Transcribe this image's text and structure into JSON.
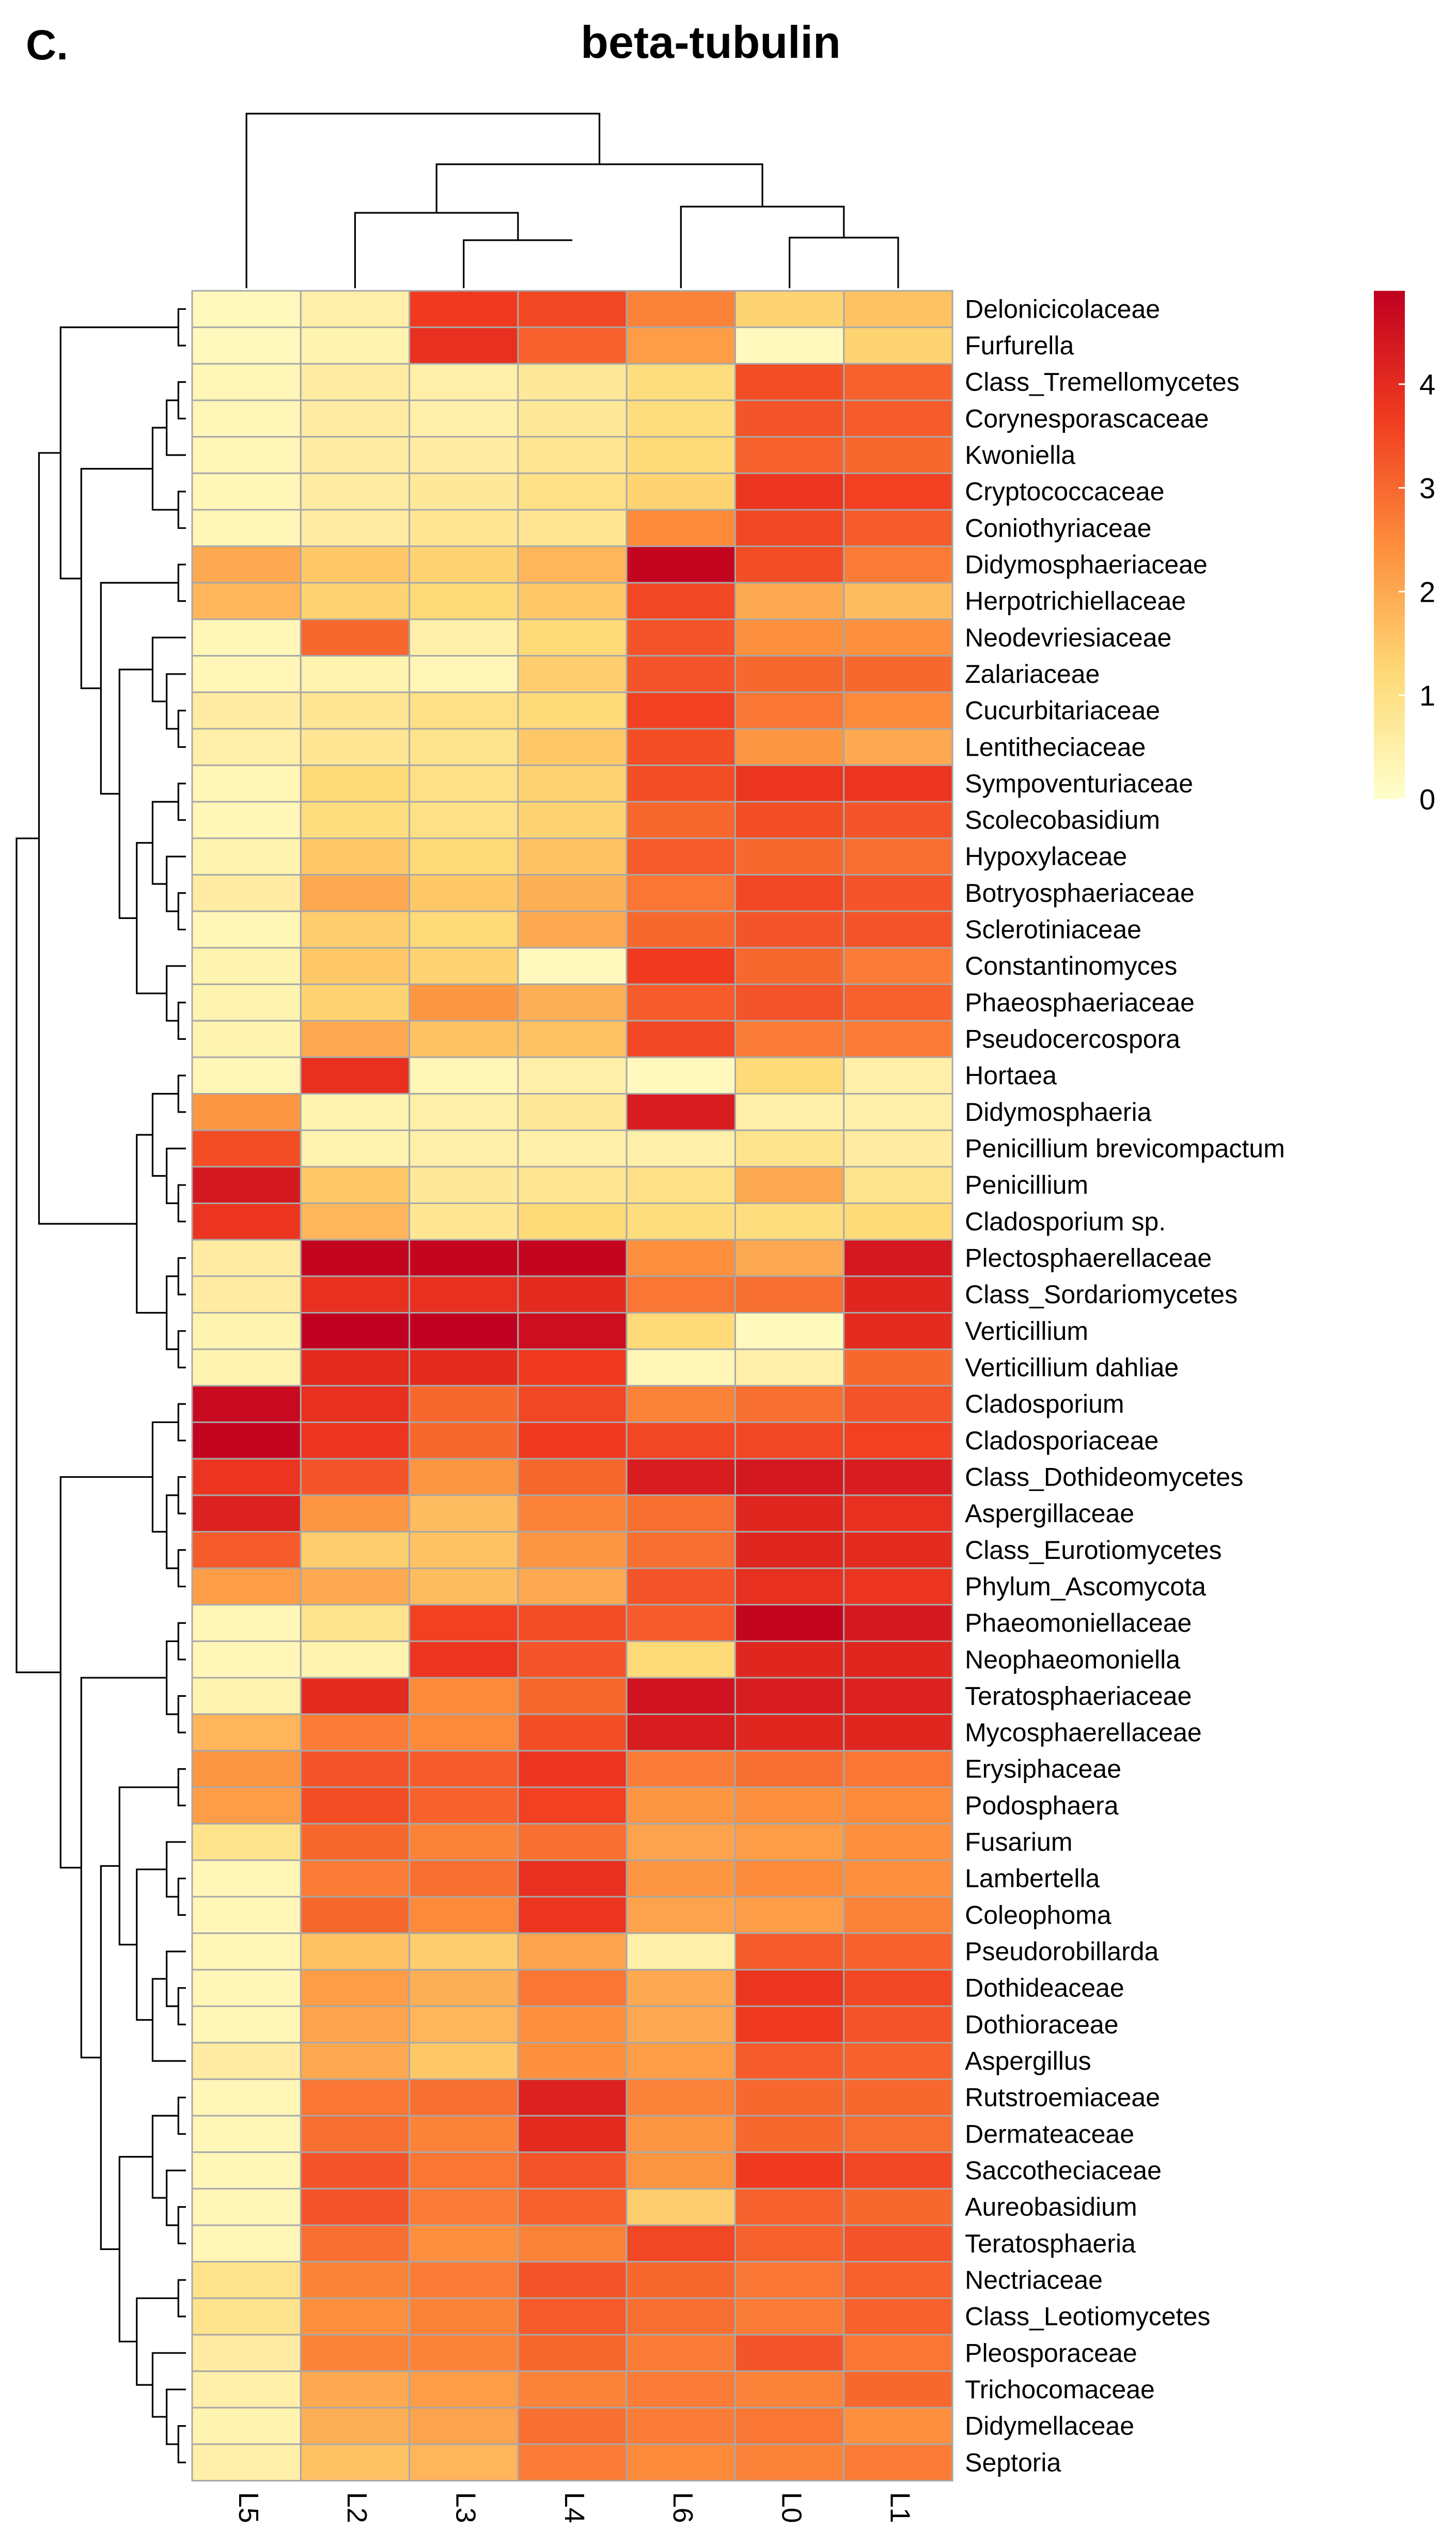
{
  "chart_data": {
    "type": "heatmap",
    "panel_label": "C.",
    "title": "beta-tubulin",
    "columns": [
      "L5",
      "L2",
      "L3",
      "L4",
      "L6",
      "L0",
      "L1"
    ],
    "rows": [
      {
        "name": "Delonicicolaceae",
        "values": [
          0.2,
          0.5,
          3.7,
          3.5,
          2.6,
          1.3,
          1.6
        ]
      },
      {
        "name": "Furfurella",
        "values": [
          0.2,
          0.4,
          3.9,
          3.1,
          2.2,
          0.2,
          1.3
        ]
      },
      {
        "name": "Class_Tremellomycetes",
        "values": [
          0.3,
          0.6,
          0.5,
          0.7,
          1.1,
          3.4,
          3.1
        ]
      },
      {
        "name": "Corynesporascaceae",
        "values": [
          0.3,
          0.6,
          0.5,
          0.7,
          1.1,
          3.3,
          3.2
        ]
      },
      {
        "name": "Kwoniella",
        "values": [
          0.3,
          0.6,
          0.6,
          0.8,
          1.2,
          3.1,
          3.0
        ]
      },
      {
        "name": "Cryptococcaceae",
        "values": [
          0.3,
          0.6,
          0.7,
          1.0,
          1.3,
          3.8,
          3.6
        ]
      },
      {
        "name": "Coniothyriaceae",
        "values": [
          0.3,
          0.6,
          0.8,
          0.8,
          2.5,
          3.5,
          3.2
        ]
      },
      {
        "name": "Didymosphaeriaceae",
        "values": [
          2.0,
          1.5,
          1.3,
          1.8,
          4.8,
          3.4,
          2.7
        ]
      },
      {
        "name": "Herpotrichiellaceae",
        "values": [
          1.8,
          1.3,
          1.2,
          1.5,
          3.5,
          2.0,
          1.7
        ]
      },
      {
        "name": "Neodevriesiaceae",
        "values": [
          0.3,
          3.0,
          0.5,
          1.2,
          3.3,
          2.4,
          2.4
        ]
      },
      {
        "name": "Zalariaceae",
        "values": [
          0.3,
          0.4,
          0.3,
          1.4,
          3.3,
          3.0,
          3.0
        ]
      },
      {
        "name": "Cucurbitariaceae",
        "values": [
          0.6,
          0.8,
          1.0,
          1.2,
          3.6,
          2.8,
          2.5
        ]
      },
      {
        "name": "Lentitheciaceae",
        "values": [
          0.5,
          0.8,
          0.9,
          1.5,
          3.4,
          2.3,
          2.0
        ]
      },
      {
        "name": "Sympoventuriaceae",
        "values": [
          0.3,
          1.2,
          1.0,
          1.3,
          3.4,
          3.8,
          3.8
        ]
      },
      {
        "name": "Scolecobasidium",
        "values": [
          0.3,
          1.1,
          1.0,
          1.3,
          3.0,
          3.4,
          3.3
        ]
      },
      {
        "name": "Hypoxylaceae",
        "values": [
          0.4,
          1.5,
          1.2,
          1.6,
          3.2,
          3.0,
          2.9
        ]
      },
      {
        "name": "Botryosphaeriaceae",
        "values": [
          0.6,
          2.0,
          1.5,
          1.9,
          2.8,
          3.5,
          3.3
        ]
      },
      {
        "name": "Sclerotiniaceae",
        "values": [
          0.3,
          1.4,
          1.2,
          2.0,
          3.0,
          3.3,
          3.3
        ]
      },
      {
        "name": "Constantinomyces",
        "values": [
          0.4,
          1.5,
          1.3,
          0.2,
          3.7,
          3.0,
          2.7
        ]
      },
      {
        "name": "Phaeosphaeriaceae",
        "values": [
          0.4,
          1.3,
          2.3,
          1.9,
          3.2,
          3.3,
          3.1
        ]
      },
      {
        "name": "Pseudocercospora",
        "values": [
          0.4,
          2.0,
          1.6,
          1.6,
          3.5,
          2.7,
          2.7
        ]
      },
      {
        "name": "Hortaea",
        "values": [
          0.3,
          3.9,
          0.3,
          0.5,
          0.2,
          1.2,
          0.5
        ]
      },
      {
        "name": "Didymosphaeria",
        "values": [
          2.3,
          0.4,
          0.5,
          0.7,
          4.3,
          0.5,
          0.5
        ]
      },
      {
        "name": "Penicillium brevicompactum",
        "values": [
          3.4,
          0.4,
          0.5,
          0.5,
          0.5,
          0.9,
          0.6
        ]
      },
      {
        "name": "Penicillium",
        "values": [
          4.4,
          1.5,
          0.7,
          0.8,
          1.0,
          2.0,
          0.9
        ]
      },
      {
        "name": "Cladosporium sp.",
        "values": [
          3.8,
          1.8,
          0.8,
          1.2,
          1.1,
          1.1,
          1.2
        ]
      },
      {
        "name": "Plectosphaerellaceae",
        "values": [
          0.6,
          4.8,
          4.8,
          4.8,
          2.4,
          2.0,
          4.4
        ]
      },
      {
        "name": "Class_Sordariomycetes",
        "values": [
          0.6,
          3.9,
          3.9,
          4.0,
          2.8,
          2.9,
          4.1
        ]
      },
      {
        "name": "Verticillium",
        "values": [
          0.4,
          4.9,
          4.9,
          4.6,
          1.2,
          0.2,
          4.0
        ]
      },
      {
        "name": "Verticillium dahliae",
        "values": [
          0.4,
          4.0,
          4.0,
          3.7,
          0.3,
          0.5,
          3.0
        ]
      },
      {
        "name": "Cladosporium",
        "values": [
          4.7,
          3.9,
          3.0,
          3.5,
          2.6,
          2.9,
          3.3
        ]
      },
      {
        "name": "Cladosporiaceae",
        "values": [
          4.8,
          3.8,
          3.0,
          3.7,
          3.5,
          3.5,
          3.6
        ]
      },
      {
        "name": "Class_Dothideomycetes",
        "values": [
          3.8,
          3.3,
          2.3,
          3.0,
          4.3,
          4.4,
          4.3
        ]
      },
      {
        "name": "Aspergillaceae",
        "values": [
          4.2,
          2.3,
          1.7,
          2.6,
          2.9,
          4.1,
          3.9
        ]
      },
      {
        "name": "Class_Eurotiomycetes",
        "values": [
          3.2,
          1.4,
          1.6,
          2.3,
          2.9,
          4.1,
          4.0
        ]
      },
      {
        "name": "Phylum_Ascomycota",
        "values": [
          2.2,
          2.0,
          1.7,
          2.0,
          3.3,
          3.9,
          3.8
        ]
      },
      {
        "name": "Phaeomoniellaceae",
        "values": [
          0.3,
          0.9,
          3.6,
          3.4,
          3.2,
          4.8,
          4.4
        ]
      },
      {
        "name": "Neophaeomoniella",
        "values": [
          0.3,
          0.4,
          3.8,
          3.3,
          1.2,
          4.1,
          4.1
        ]
      },
      {
        "name": "Teratosphaeriaceae",
        "values": [
          0.4,
          4.0,
          2.5,
          3.0,
          4.5,
          4.3,
          4.2
        ]
      },
      {
        "name": "Mycosphaerellaceae",
        "values": [
          1.8,
          2.7,
          2.5,
          3.4,
          4.3,
          4.1,
          4.1
        ]
      },
      {
        "name": "Erysiphaceae",
        "values": [
          2.3,
          3.3,
          3.2,
          3.8,
          2.7,
          2.9,
          2.8
        ]
      },
      {
        "name": "Podosphaera",
        "values": [
          2.2,
          3.4,
          3.1,
          3.6,
          2.3,
          2.4,
          2.5
        ]
      },
      {
        "name": "Fusarium",
        "values": [
          0.9,
          3.0,
          2.6,
          2.9,
          2.1,
          2.2,
          2.4
        ]
      },
      {
        "name": "Lambertella",
        "values": [
          0.3,
          2.7,
          2.9,
          3.9,
          2.3,
          2.5,
          2.4
        ]
      },
      {
        "name": "Coleophoma",
        "values": [
          0.3,
          3.0,
          2.5,
          3.8,
          2.1,
          2.2,
          2.6
        ]
      },
      {
        "name": "Pseudorobillarda",
        "values": [
          0.3,
          1.6,
          1.4,
          2.1,
          0.5,
          3.2,
          3.1
        ]
      },
      {
        "name": "Dothideaceae",
        "values": [
          0.3,
          2.2,
          1.9,
          2.8,
          2.0,
          3.8,
          3.5
        ]
      },
      {
        "name": "Dothioraceae",
        "values": [
          0.3,
          2.1,
          1.8,
          2.4,
          2.0,
          3.7,
          3.3
        ]
      },
      {
        "name": "Aspergillus",
        "values": [
          0.6,
          2.0,
          1.5,
          2.4,
          2.2,
          3.2,
          3.1
        ]
      },
      {
        "name": "Rutstroemiaceae",
        "values": [
          0.3,
          2.8,
          2.9,
          4.2,
          2.6,
          3.0,
          3.0
        ]
      },
      {
        "name": "Dermateaceae",
        "values": [
          0.3,
          2.9,
          2.6,
          4.0,
          2.3,
          3.0,
          2.9
        ]
      },
      {
        "name": "Saccotheciaceae",
        "values": [
          0.3,
          3.3,
          2.8,
          3.3,
          2.3,
          3.7,
          3.5
        ]
      },
      {
        "name": "Aureobasidium",
        "values": [
          0.3,
          3.3,
          2.7,
          3.1,
          1.4,
          3.1,
          3.0
        ]
      },
      {
        "name": "Teratosphaeria",
        "values": [
          0.3,
          2.9,
          2.4,
          2.6,
          3.5,
          3.1,
          3.3
        ]
      },
      {
        "name": "Nectriaceae",
        "values": [
          0.9,
          2.6,
          2.7,
          3.3,
          3.0,
          2.8,
          3.1
        ]
      },
      {
        "name": "Class_Leotiomycetes",
        "values": [
          0.9,
          2.4,
          2.6,
          3.2,
          2.9,
          2.7,
          3.1
        ]
      },
      {
        "name": "Pleosporaceae",
        "values": [
          0.6,
          2.6,
          2.6,
          3.0,
          2.7,
          3.3,
          2.8
        ]
      },
      {
        "name": "Trichocomaceae",
        "values": [
          0.5,
          2.0,
          2.2,
          2.6,
          2.7,
          2.6,
          3.0
        ]
      },
      {
        "name": "Didymellaceae",
        "values": [
          0.4,
          1.9,
          2.1,
          2.9,
          2.7,
          2.8,
          2.4
        ]
      },
      {
        "name": "Septoria",
        "values": [
          0.5,
          1.6,
          1.8,
          2.7,
          2.5,
          2.6,
          2.7
        ]
      }
    ],
    "legend": {
      "ticks": [
        4,
        3,
        2,
        1,
        0
      ],
      "min": 0,
      "max": 4.9,
      "colors": [
        "#ffffcc",
        "#fed976",
        "#fd8d3c",
        "#f03b20",
        "#c00020"
      ]
    },
    "xlabel": "",
    "ylabel": ""
  }
}
